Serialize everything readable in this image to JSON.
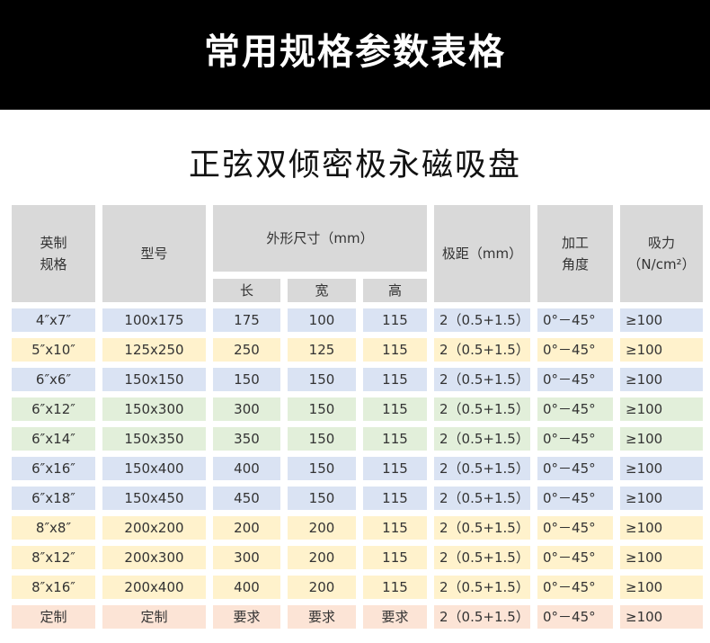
{
  "header": {
    "title": "常用规格参数表格"
  },
  "subtitle": "正弦双倾密极永磁吸盘",
  "table": {
    "head": {
      "spec": [
        "英制",
        "规格"
      ],
      "model": "型号",
      "size": "外形尺寸（mm）",
      "size_parts": [
        "长",
        "宽",
        "高"
      ],
      "pitch": "极距（mm）",
      "angle": [
        "加工",
        "角度"
      ],
      "force": [
        "吸力",
        "（N/cm²）"
      ]
    },
    "rows": [
      [
        "4″x7″",
        "100x175",
        "175",
        "100",
        "115",
        "2（0.5+1.5）",
        "0°－45°",
        "≥100"
      ],
      [
        "5″x10″",
        "125x250",
        "250",
        "125",
        "115",
        "2（0.5+1.5）",
        "0°－45°",
        "≥100"
      ],
      [
        "6″x6″",
        "150x150",
        "150",
        "150",
        "115",
        "2（0.5+1.5）",
        "0°－45°",
        "≥100"
      ],
      [
        "6″x12″",
        "150x300",
        "300",
        "150",
        "115",
        "2（0.5+1.5）",
        "0°－45°",
        "≥100"
      ],
      [
        "6″x14″",
        "150x350",
        "350",
        "150",
        "115",
        "2（0.5+1.5）",
        "0°－45°",
        "≥100"
      ],
      [
        "6″x16″",
        "150x400",
        "400",
        "150",
        "115",
        "2（0.5+1.5）",
        "0°－45°",
        "≥100"
      ],
      [
        "6″x18″",
        "150x450",
        "450",
        "150",
        "115",
        "2（0.5+1.5）",
        "0°－45°",
        "≥100"
      ],
      [
        "8″x8″",
        "200x200",
        "200",
        "200",
        "115",
        "2（0.5+1.5）",
        "0°－45°",
        "≥100"
      ],
      [
        "8″x12″",
        "200x300",
        "300",
        "200",
        "115",
        "2（0.5+1.5）",
        "0°－45°",
        "≥100"
      ],
      [
        "8″x16″",
        "200x400",
        "400",
        "200",
        "115",
        "2（0.5+1.5）",
        "0°－45°",
        "≥100"
      ],
      [
        "定制",
        "定制",
        "要求",
        "要求",
        "要求",
        "2（0.5+1.5）",
        "0°－45°",
        "≥100"
      ]
    ]
  }
}
